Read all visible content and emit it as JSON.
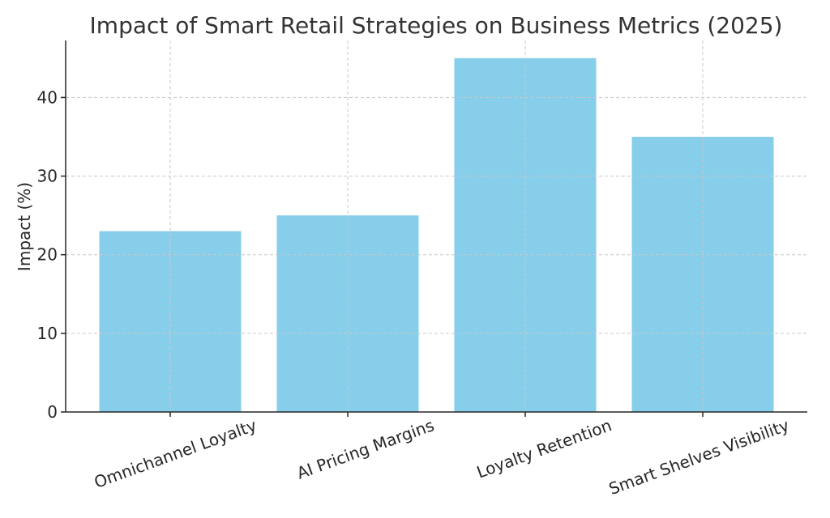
{
  "chart_data": {
    "type": "bar",
    "title": "Impact of Smart Retail Strategies on Business Metrics (2025)",
    "xlabel": "",
    "ylabel": "Impact (%)",
    "categories": [
      "Omnichannel Loyalty",
      "AI Pricing Margins",
      "Loyalty Retention",
      "Smart Shelves Visibility"
    ],
    "values": [
      23,
      25,
      45,
      35
    ],
    "ylim": [
      0,
      47.25
    ],
    "yticks": [
      0,
      10,
      20,
      30,
      40
    ],
    "grid": true,
    "colors": {
      "bar": "#87ceeb"
    }
  }
}
